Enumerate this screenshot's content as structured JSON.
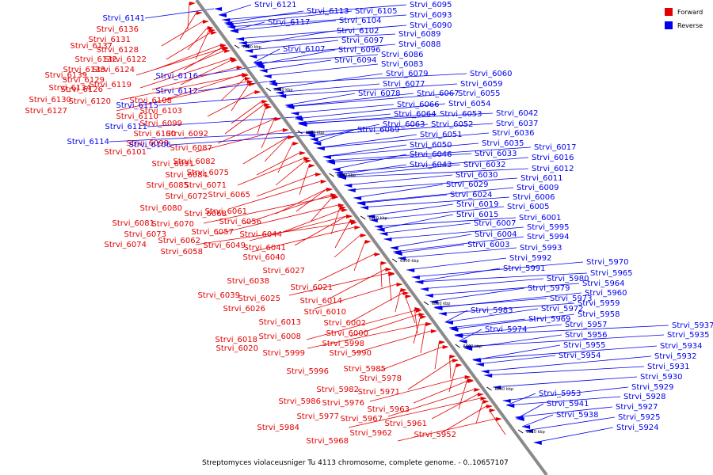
{
  "colors": {
    "forward": "#e30000",
    "reverse": "#0000ee",
    "axis": "#808080",
    "tick": "#000000"
  },
  "legend": [
    {
      "label": "Forward",
      "color": "#e30000"
    },
    {
      "label": "Reverse",
      "color": "#0000ee"
    }
  ],
  "caption": "Streptomyces violaceusniger Tu 4113 chromosome, complete genome. - 0..10657107",
  "ticks": [
    "7000 kbp",
    "6980 kbp",
    "6960 kbp",
    "6940 kbp",
    "6920 kbp",
    "6900 kbp",
    "6880 kbp",
    "6860 kbp",
    "6840 kbp",
    "6820 kbp"
  ],
  "forward_genes": [
    "Strvi_6136",
    "Strvi_6131",
    "Strvi_6137",
    "Strvi_6128",
    "Strvi_6122",
    "Strvi_6132",
    "Strvi_6133",
    "Strvi_6124",
    "Strvi_6129",
    "Strvi_6139",
    "Strvi_6119",
    "Strvi_6126",
    "Strvi_6134",
    "Strvi_6120",
    "Strvi_6130",
    "Strvi_6108",
    "Strvi_6127",
    "Strvi_6103",
    "Strvi_6110",
    "Strvi_6099",
    "Strvi_6100",
    "Strvi_6092",
    "Strvi_6098",
    "Strvi_6101",
    "Strvi_6087",
    "Strvi_6091",
    "Strvi_6082",
    "Strvi_6084",
    "Strvi_6075",
    "Strvi_6085",
    "Strvi_6071",
    "Strvi_6072",
    "Strvi_6065",
    "Strvi_6080",
    "Strvi_6068",
    "Strvi_6061",
    "Strvi_6070",
    "Strvi_6081",
    "Strvi_6056",
    "Strvi_6057",
    "Strvi_6073",
    "Strvi_6044",
    "Strvi_6062",
    "Strvi_6074",
    "Strvi_6049",
    "Strvi_6041",
    "Strvi_6058",
    "Strvi_6040",
    "Strvi_6027",
    "Strvi_6038",
    "Strvi_6021",
    "Strvi_6039",
    "Strvi_6025",
    "Strvi_6014",
    "Strvi_6026",
    "Strvi_6010",
    "Strvi_6013",
    "Strvi_6002",
    "Strvi_6000",
    "Strvi_6008",
    "Strvi_6018",
    "Strvi_5998",
    "Strvi_6020",
    "Strvi_5999",
    "Strvi_5990",
    "Strvi_5985",
    "Strvi_5996",
    "Strvi_5978",
    "Strvi_5982",
    "Strvi_5971",
    "Strvi_5986",
    "Strvi_5976",
    "Strvi_5963",
    "Strvi_5977",
    "Strvi_5967",
    "Strvi_5961",
    "Strvi_5984",
    "Strvi_5962",
    "Strvi_5952",
    "Strvi_5968"
  ],
  "reverse_genes": [
    "Strvi_6141",
    "Strvi_6121",
    "Strvi_6113",
    "Strvi_6105",
    "Strvi_6095",
    "Strvi_6117",
    "Strvi_6104",
    "Strvi_6093",
    "Strvi_6090",
    "Strvi_6102",
    "Strvi_6089",
    "Strvi_6097",
    "Strvi_6088",
    "Strvi_6107",
    "Strvi_6096",
    "Strvi_6086",
    "Strvi_6094",
    "Strvi_6083",
    "Strvi_6116",
    "Strvi_6079",
    "Strvi_6077",
    "Strvi_6112",
    "Strvi_6078",
    "Strvi_6067",
    "Strvi_6115",
    "Strvi_6066",
    "Strvi_6060",
    "Strvi_6059",
    "Strvi_6055",
    "Strvi_6054",
    "Strvi_6064",
    "Strvi_6053",
    "Strvi_6111",
    "Strvi_6069",
    "Strvi_6063",
    "Strvi_6052",
    "Strvi_6042",
    "Strvi_6037",
    "Strvi_6051",
    "Strvi_6036",
    "Strvi_6114",
    "Strvi_6106",
    "Strvi_6050",
    "Strvi_6035",
    "Strvi_6046",
    "Strvi_6033",
    "Strvi_6043",
    "Strvi_6032",
    "Strvi_6017",
    "Strvi_6016",
    "Strvi_6012",
    "Strvi_6030",
    "Strvi_6011",
    "Strvi_6029",
    "Strvi_6009",
    "Strvi_6024",
    "Strvi_6006",
    "Strvi_6019",
    "Strvi_6005",
    "Strvi_6015",
    "Strvi_6001",
    "Strvi_6007",
    "Strvi_5995",
    "Strvi_6004",
    "Strvi_5994",
    "Strvi_6003",
    "Strvi_5993",
    "Strvi_5992",
    "Strvi_5991",
    "Strvi_5970",
    "Strvi_5965",
    "Strvi_5980",
    "Strvi_5964",
    "Strvi_5979",
    "Strvi_5960",
    "Strvi_5973",
    "Strvi_5959",
    "Strvi_5983",
    "Strvi_5972",
    "Strvi_5958",
    "Strvi_5969",
    "Strvi_5957",
    "Strvi_5974",
    "Strvi_5956",
    "Strvi_5955",
    "Strvi_5954",
    "Strvi_5937",
    "Strvi_5935",
    "Strvi_5934",
    "Strvi_5932",
    "Strvi_5931",
    "Strvi_5930",
    "Strvi_5953",
    "Strvi_5929",
    "Strvi_5941",
    "Strvi_5928",
    "Strvi_5927",
    "Strvi_5938",
    "Strvi_5925",
    "Strvi_5924"
  ]
}
